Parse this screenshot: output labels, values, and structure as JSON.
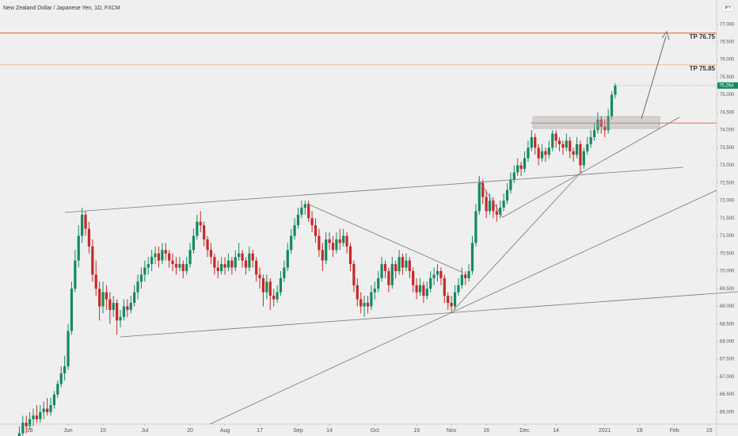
{
  "chart_data": {
    "type": "candlestick",
    "title": "New Zealand Dollar / Japanese Yen, 1D, FXCM",
    "currency": "JPY",
    "up_color": "#138a5e",
    "down_color": "#c62828",
    "last_price": 75.264,
    "annotations": [
      "TP 76.75",
      "TP 75.85"
    ],
    "xlim": [
      -5.55,
      200.1
    ],
    "xticks": [
      {
        "value": 3,
        "label": "18"
      },
      {
        "value": 14,
        "label": "Jun"
      },
      {
        "value": 24,
        "label": "15"
      },
      {
        "value": 36,
        "label": "Jul"
      },
      {
        "value": 49,
        "label": "20"
      },
      {
        "value": 59,
        "label": "Aug"
      },
      {
        "value": 69,
        "label": "17"
      },
      {
        "value": 80,
        "label": "Sep"
      },
      {
        "value": 89,
        "label": "14"
      },
      {
        "value": 102,
        "label": "Oct"
      },
      {
        "value": 114,
        "label": "19"
      },
      {
        "value": 124,
        "label": "Nov"
      },
      {
        "value": 134,
        "label": "16"
      },
      {
        "value": 145,
        "label": "Dec"
      },
      {
        "value": 154,
        "label": "14"
      },
      {
        "value": 168,
        "label": "2021"
      },
      {
        "value": 178,
        "label": "18"
      },
      {
        "value": 188,
        "label": "Feb"
      },
      {
        "value": 198,
        "label": "15"
      }
    ],
    "ylim": [
      65.66,
      77.69
    ],
    "yticks": [
      {
        "value": 66,
        "label": "66.000"
      },
      {
        "value": 66.5,
        "label": "66.500"
      },
      {
        "value": 67,
        "label": "67.000"
      },
      {
        "value": 67.5,
        "label": "67.500"
      },
      {
        "value": 68,
        "label": "68.000"
      },
      {
        "value": 68.5,
        "label": "68.500"
      },
      {
        "value": 69,
        "label": "69.000"
      },
      {
        "value": 69.5,
        "label": "69.500"
      },
      {
        "value": 70,
        "label": "70.000"
      },
      {
        "value": 70.5,
        "label": "70.500"
      },
      {
        "value": 71,
        "label": "71.000"
      },
      {
        "value": 71.5,
        "label": "71.500"
      },
      {
        "value": 72,
        "label": "72.000"
      },
      {
        "value": 72.5,
        "label": "72.500"
      },
      {
        "value": 73,
        "label": "73.000"
      },
      {
        "value": 73.5,
        "label": "73.500"
      },
      {
        "value": 74,
        "label": "74.000"
      },
      {
        "value": 74.5,
        "label": "74.500"
      },
      {
        "value": 75,
        "label": "75.000"
      },
      {
        "value": 75.5,
        "label": "75.500"
      },
      {
        "value": 76,
        "label": "76.000"
      },
      {
        "value": 76.5,
        "label": "76.500"
      },
      {
        "value": 77,
        "label": "77.000"
      }
    ],
    "ohlc": [
      [
        65.3,
        65.6,
        65.1,
        65.4
      ],
      [
        65.4,
        65.9,
        65.3,
        65.7
      ],
      [
        65.7,
        65.9,
        65.4,
        65.6
      ],
      [
        65.6,
        66.0,
        65.5,
        65.8
      ],
      [
        65.8,
        66.1,
        65.6,
        65.9
      ],
      [
        65.9,
        66.2,
        65.7,
        65.8
      ],
      [
        65.8,
        66.2,
        65.7,
        66.0
      ],
      [
        66.0,
        66.3,
        65.8,
        66.1
      ],
      [
        66.1,
        66.4,
        65.9,
        66.0
      ],
      [
        66.0,
        66.4,
        65.9,
        66.2
      ],
      [
        66.2,
        66.6,
        66.1,
        66.5
      ],
      [
        66.5,
        66.9,
        66.4,
        66.8
      ],
      [
        66.8,
        67.3,
        66.7,
        67.1
      ],
      [
        67.1,
        67.6,
        66.9,
        67.3
      ],
      [
        67.3,
        68.5,
        67.2,
        68.3
      ],
      [
        68.3,
        69.7,
        68.2,
        69.5
      ],
      [
        69.5,
        70.6,
        69.4,
        70.3
      ],
      [
        70.3,
        71.3,
        70.1,
        71.0
      ],
      [
        71.0,
        71.8,
        70.8,
        71.6
      ],
      [
        71.6,
        71.7,
        71.0,
        71.2
      ],
      [
        71.2,
        71.4,
        70.5,
        70.7
      ],
      [
        70.7,
        70.9,
        69.7,
        69.9
      ],
      [
        69.9,
        70.3,
        69.3,
        69.5
      ],
      [
        69.5,
        69.7,
        68.6,
        69.0
      ],
      [
        69.0,
        69.7,
        68.8,
        69.4
      ],
      [
        69.4,
        69.6,
        68.9,
        69.2
      ],
      [
        69.2,
        69.4,
        68.5,
        68.9
      ],
      [
        68.9,
        69.3,
        68.7,
        69.1
      ],
      [
        69.1,
        69.2,
        68.2,
        68.6
      ],
      [
        68.6,
        68.9,
        68.4,
        68.7
      ],
      [
        68.7,
        69.2,
        68.6,
        69.0
      ],
      [
        69.0,
        69.2,
        68.7,
        68.9
      ],
      [
        68.9,
        69.3,
        68.8,
        69.1
      ],
      [
        69.1,
        69.6,
        69.0,
        69.4
      ],
      [
        69.4,
        69.9,
        69.2,
        69.7
      ],
      [
        69.7,
        70.1,
        69.5,
        69.9
      ],
      [
        69.9,
        70.3,
        69.7,
        70.1
      ],
      [
        70.1,
        70.4,
        69.9,
        70.2
      ],
      [
        70.2,
        70.6,
        70.0,
        70.4
      ],
      [
        70.4,
        70.7,
        70.2,
        70.5
      ],
      [
        70.5,
        70.7,
        70.1,
        70.3
      ],
      [
        70.3,
        70.8,
        70.2,
        70.6
      ],
      [
        70.6,
        70.8,
        70.3,
        70.5
      ],
      [
        70.5,
        70.6,
        70.1,
        70.3
      ],
      [
        70.3,
        70.5,
        70.0,
        70.2
      ],
      [
        70.2,
        70.4,
        69.9,
        70.1
      ],
      [
        70.1,
        70.4,
        70.0,
        70.2
      ],
      [
        70.2,
        70.3,
        69.8,
        70.0
      ],
      [
        70.0,
        70.4,
        69.9,
        70.2
      ],
      [
        70.2,
        70.8,
        70.1,
        70.6
      ],
      [
        70.6,
        71.2,
        70.5,
        71.0
      ],
      [
        71.0,
        71.6,
        70.9,
        71.4
      ],
      [
        71.4,
        71.7,
        71.1,
        71.3
      ],
      [
        71.3,
        71.4,
        70.7,
        70.9
      ],
      [
        70.9,
        71.0,
        70.4,
        70.6
      ],
      [
        70.6,
        70.8,
        70.2,
        70.4
      ],
      [
        70.4,
        70.5,
        69.9,
        70.1
      ],
      [
        70.1,
        70.3,
        69.8,
        70.0
      ],
      [
        70.0,
        70.4,
        69.9,
        70.2
      ],
      [
        70.2,
        70.4,
        69.9,
        70.1
      ],
      [
        70.1,
        70.5,
        70.0,
        70.3
      ],
      [
        70.3,
        70.4,
        69.9,
        70.1
      ],
      [
        70.1,
        70.6,
        70.0,
        70.4
      ],
      [
        70.4,
        70.8,
        70.3,
        70.5
      ],
      [
        70.5,
        70.6,
        70.1,
        70.3
      ],
      [
        70.3,
        70.4,
        69.9,
        70.1
      ],
      [
        70.1,
        70.7,
        70.0,
        70.5
      ],
      [
        70.5,
        70.6,
        70.1,
        70.3
      ],
      [
        70.3,
        70.4,
        69.7,
        69.9
      ],
      [
        69.9,
        70.1,
        69.5,
        69.8
      ],
      [
        69.8,
        69.9,
        69.0,
        69.4
      ],
      [
        69.4,
        69.9,
        69.2,
        69.7
      ],
      [
        69.7,
        69.8,
        68.9,
        69.3
      ],
      [
        69.3,
        69.5,
        69.0,
        69.2
      ],
      [
        69.2,
        69.6,
        69.1,
        69.4
      ],
      [
        69.4,
        70.0,
        69.3,
        69.8
      ],
      [
        69.8,
        70.3,
        69.7,
        70.1
      ],
      [
        70.1,
        70.8,
        70.0,
        70.6
      ],
      [
        70.6,
        71.2,
        70.5,
        71.0
      ],
      [
        71.0,
        71.5,
        70.9,
        71.3
      ],
      [
        71.3,
        71.8,
        71.2,
        71.6
      ],
      [
        71.6,
        72.0,
        71.5,
        71.8
      ],
      [
        71.8,
        72.0,
        71.6,
        71.9
      ],
      [
        71.9,
        72.0,
        71.4,
        71.5
      ],
      [
        71.5,
        71.7,
        71.1,
        71.3
      ],
      [
        71.3,
        71.5,
        70.8,
        71.0
      ],
      [
        71.0,
        71.2,
        70.4,
        70.6
      ],
      [
        70.6,
        70.8,
        70.0,
        70.3
      ],
      [
        70.3,
        71.1,
        70.2,
        70.9
      ],
      [
        70.9,
        71.1,
        70.6,
        70.8
      ],
      [
        70.8,
        71.0,
        70.4,
        70.6
      ],
      [
        70.6,
        71.1,
        70.5,
        70.9
      ],
      [
        70.9,
        71.2,
        70.6,
        70.8
      ],
      [
        70.8,
        71.2,
        70.7,
        71.0
      ],
      [
        71.0,
        71.1,
        70.5,
        70.7
      ],
      [
        70.7,
        70.8,
        70.0,
        70.2
      ],
      [
        70.2,
        70.3,
        69.4,
        69.6
      ],
      [
        69.6,
        69.8,
        69.0,
        69.2
      ],
      [
        69.2,
        69.4,
        68.8,
        69.0
      ],
      [
        69.0,
        69.3,
        68.7,
        69.1
      ],
      [
        69.1,
        69.3,
        68.8,
        69.0
      ],
      [
        69.0,
        69.6,
        68.9,
        69.4
      ],
      [
        69.4,
        69.7,
        69.2,
        69.5
      ],
      [
        69.5,
        70.0,
        69.4,
        69.8
      ],
      [
        69.8,
        70.4,
        69.7,
        70.2
      ],
      [
        70.2,
        70.3,
        69.8,
        70.0
      ],
      [
        70.0,
        70.1,
        69.4,
        69.6
      ],
      [
        69.6,
        70.4,
        69.5,
        70.2
      ],
      [
        70.2,
        70.3,
        69.8,
        70.0
      ],
      [
        70.0,
        70.6,
        69.9,
        70.4
      ],
      [
        70.4,
        70.5,
        69.9,
        70.1
      ],
      [
        70.1,
        70.5,
        70.0,
        70.3
      ],
      [
        70.3,
        70.4,
        69.8,
        70.0
      ],
      [
        70.0,
        70.1,
        69.4,
        69.6
      ],
      [
        69.6,
        69.8,
        69.2,
        69.4
      ],
      [
        69.4,
        69.8,
        69.3,
        69.6
      ],
      [
        69.6,
        69.7,
        69.1,
        69.3
      ],
      [
        69.3,
        69.7,
        69.2,
        69.5
      ],
      [
        69.5,
        70.0,
        69.4,
        69.8
      ],
      [
        69.8,
        70.1,
        69.6,
        69.9
      ],
      [
        69.9,
        70.2,
        69.7,
        70.0
      ],
      [
        70.0,
        70.1,
        69.6,
        69.8
      ],
      [
        69.8,
        69.9,
        69.1,
        69.3
      ],
      [
        69.3,
        69.4,
        68.9,
        69.1
      ],
      [
        69.1,
        69.3,
        68.8,
        69.0
      ],
      [
        69.0,
        69.6,
        68.9,
        69.4
      ],
      [
        69.4,
        69.8,
        69.3,
        69.6
      ],
      [
        69.6,
        70.1,
        69.5,
        69.9
      ],
      [
        69.9,
        70.0,
        69.6,
        69.8
      ],
      [
        69.8,
        70.2,
        69.7,
        70.0
      ],
      [
        70.0,
        71.0,
        69.9,
        70.8
      ],
      [
        70.8,
        71.9,
        70.7,
        71.7
      ],
      [
        71.7,
        72.7,
        71.6,
        72.5
      ],
      [
        72.5,
        72.6,
        71.9,
        72.1
      ],
      [
        72.1,
        72.3,
        71.5,
        71.7
      ],
      [
        71.7,
        72.2,
        71.6,
        72.0
      ],
      [
        72.0,
        72.1,
        71.5,
        71.7
      ],
      [
        71.7,
        71.9,
        71.4,
        71.6
      ],
      [
        71.6,
        72.0,
        71.5,
        71.8
      ],
      [
        71.8,
        72.2,
        71.7,
        72.0
      ],
      [
        72.0,
        72.5,
        71.9,
        72.3
      ],
      [
        72.3,
        72.8,
        72.2,
        72.6
      ],
      [
        72.6,
        73.0,
        72.5,
        72.8
      ],
      [
        72.8,
        73.2,
        72.7,
        73.0
      ],
      [
        73.0,
        73.1,
        72.7,
        72.9
      ],
      [
        72.9,
        73.4,
        72.8,
        73.2
      ],
      [
        73.2,
        73.7,
        73.1,
        73.5
      ],
      [
        73.5,
        74.0,
        73.4,
        73.8
      ],
      [
        73.8,
        73.9,
        73.3,
        73.5
      ],
      [
        73.5,
        73.6,
        73.0,
        73.2
      ],
      [
        73.2,
        73.6,
        73.1,
        73.4
      ],
      [
        73.4,
        73.5,
        73.1,
        73.3
      ],
      [
        73.3,
        73.7,
        73.2,
        73.5
      ],
      [
        73.5,
        74.0,
        73.4,
        73.9
      ],
      [
        73.9,
        74.0,
        73.5,
        73.7
      ],
      [
        73.7,
        73.8,
        73.4,
        73.6
      ],
      [
        73.6,
        73.7,
        73.3,
        73.5
      ],
      [
        73.5,
        73.9,
        73.4,
        73.7
      ],
      [
        73.7,
        73.8,
        73.2,
        73.4
      ],
      [
        73.4,
        73.5,
        73.1,
        73.3
      ],
      [
        73.3,
        73.8,
        73.2,
        73.6
      ],
      [
        73.6,
        73.7,
        72.8,
        73.0
      ],
      [
        73.0,
        73.5,
        72.9,
        73.4
      ],
      [
        73.4,
        73.8,
        73.3,
        73.6
      ],
      [
        73.6,
        74.0,
        73.5,
        73.8
      ],
      [
        73.8,
        74.2,
        73.7,
        74.0
      ],
      [
        74.0,
        74.5,
        73.9,
        74.3
      ],
      [
        74.3,
        74.4,
        73.9,
        74.1
      ],
      [
        74.1,
        74.3,
        73.8,
        74.0
      ],
      [
        74.0,
        74.6,
        73.9,
        74.4
      ],
      [
        74.4,
        75.1,
        74.3,
        75.0
      ],
      [
        75.0,
        75.33,
        74.9,
        75.26
      ]
    ]
  }
}
